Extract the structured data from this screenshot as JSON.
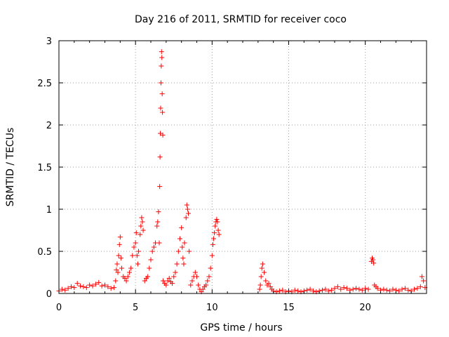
{
  "chart_data": {
    "type": "scatter",
    "title": "Day 216 of 2011, SRMTID for receiver coco",
    "xlabel": "GPS time / hours",
    "ylabel": "SRMTID / TECUs",
    "xlim": [
      0,
      24
    ],
    "ylim": [
      0,
      3
    ],
    "x_ticks": [
      0,
      5,
      10,
      15,
      20
    ],
    "x_tick_labels": [
      "0",
      "5",
      "10",
      "15",
      "20"
    ],
    "y_ticks": [
      0,
      0.5,
      1,
      1.5,
      2,
      2.5,
      3
    ],
    "y_tick_labels": [
      "0",
      "0.5",
      "1",
      "1.5",
      "2",
      "2.5",
      "3"
    ],
    "grid": true,
    "legend": "none",
    "marker": "plus",
    "color": "#ff0000",
    "series": [
      {
        "x": [
          0.0,
          0.2,
          0.4,
          0.6,
          0.8,
          1.0,
          1.2,
          1.4,
          1.6,
          1.8,
          2.0,
          2.2,
          2.4,
          2.6,
          2.8,
          3.0,
          3.2,
          3.4,
          3.6,
          3.7,
          3.75,
          3.8,
          3.85,
          3.9,
          3.95,
          4.0,
          4.05,
          4.1,
          4.2,
          4.3,
          4.4,
          4.5,
          4.6,
          4.7,
          4.8,
          4.9,
          5.0,
          5.05,
          5.1,
          5.15,
          5.2,
          5.3,
          5.35,
          5.4,
          5.45,
          5.5,
          5.6,
          5.7,
          5.8,
          5.9,
          6.0,
          6.1,
          6.2,
          6.3,
          6.4,
          6.45,
          6.5,
          6.55,
          6.58,
          6.6,
          6.62,
          6.64,
          6.66,
          6.68,
          6.7,
          6.72,
          6.74,
          6.76,
          6.78,
          6.8,
          6.9,
          7.0,
          7.1,
          7.2,
          7.3,
          7.4,
          7.5,
          7.6,
          7.7,
          7.8,
          7.9,
          8.0,
          8.05,
          8.1,
          8.15,
          8.2,
          8.3,
          8.35,
          8.4,
          8.45,
          8.5,
          8.6,
          8.7,
          8.8,
          8.9,
          9.0,
          9.1,
          9.2,
          9.3,
          9.4,
          9.5,
          9.6,
          9.7,
          9.8,
          9.9,
          10.0,
          10.05,
          10.1,
          10.15,
          10.2,
          10.25,
          10.3,
          10.35,
          10.4,
          10.45,
          13.1,
          13.15,
          13.2,
          13.25,
          13.3,
          13.4,
          13.5,
          13.6,
          13.7,
          13.8,
          13.9,
          14.0,
          14.2,
          14.4,
          14.6,
          14.8,
          15.0,
          15.2,
          15.4,
          15.6,
          15.8,
          16.0,
          16.2,
          16.4,
          16.6,
          16.8,
          17.0,
          17.2,
          17.4,
          17.6,
          17.8,
          18.0,
          18.2,
          18.4,
          18.6,
          18.8,
          19.0,
          19.2,
          19.4,
          19.6,
          19.8,
          20.0,
          20.2,
          20.4,
          20.45,
          20.5,
          20.55,
          20.6,
          20.7,
          20.8,
          21.0,
          21.2,
          21.4,
          21.6,
          21.8,
          22.0,
          22.2,
          22.4,
          22.6,
          22.8,
          23.0,
          23.2,
          23.4,
          23.6,
          23.7,
          23.8,
          23.9
        ],
        "y": [
          0.03,
          0.05,
          0.04,
          0.06,
          0.08,
          0.07,
          0.12,
          0.09,
          0.08,
          0.07,
          0.1,
          0.09,
          0.11,
          0.13,
          0.09,
          0.1,
          0.08,
          0.06,
          0.07,
          0.15,
          0.28,
          0.35,
          0.25,
          0.45,
          0.58,
          0.67,
          0.42,
          0.3,
          0.2,
          0.18,
          0.15,
          0.2,
          0.25,
          0.3,
          0.45,
          0.55,
          0.6,
          0.72,
          0.45,
          0.35,
          0.5,
          0.7,
          0.8,
          0.9,
          0.85,
          0.75,
          0.15,
          0.18,
          0.2,
          0.3,
          0.4,
          0.5,
          0.55,
          0.6,
          0.8,
          0.85,
          0.97,
          0.6,
          1.27,
          1.62,
          1.9,
          2.2,
          2.5,
          2.7,
          2.87,
          2.8,
          2.37,
          2.15,
          1.88,
          0.15,
          0.12,
          0.1,
          0.15,
          0.18,
          0.14,
          0.12,
          0.2,
          0.25,
          0.35,
          0.5,
          0.65,
          0.78,
          0.55,
          0.42,
          0.35,
          0.6,
          0.9,
          1.05,
          1.0,
          0.95,
          0.5,
          0.1,
          0.15,
          0.2,
          0.25,
          0.2,
          0.1,
          0.05,
          0.02,
          0.05,
          0.08,
          0.1,
          0.15,
          0.2,
          0.3,
          0.45,
          0.58,
          0.65,
          0.72,
          0.8,
          0.85,
          0.88,
          0.85,
          0.75,
          0.7,
          0.05,
          0.1,
          0.2,
          0.3,
          0.35,
          0.25,
          0.15,
          0.1,
          0.12,
          0.08,
          0.05,
          0.03,
          0.02,
          0.03,
          0.04,
          0.02,
          0.03,
          0.02,
          0.04,
          0.03,
          0.02,
          0.03,
          0.04,
          0.05,
          0.03,
          0.02,
          0.03,
          0.04,
          0.05,
          0.03,
          0.04,
          0.06,
          0.08,
          0.05,
          0.07,
          0.06,
          0.04,
          0.05,
          0.06,
          0.05,
          0.04,
          0.06,
          0.05,
          0.38,
          0.42,
          0.4,
          0.36,
          0.1,
          0.08,
          0.06,
          0.04,
          0.05,
          0.04,
          0.03,
          0.05,
          0.04,
          0.03,
          0.05,
          0.06,
          0.04,
          0.03,
          0.05,
          0.06,
          0.08,
          0.2,
          0.15,
          0.07
        ]
      }
    ]
  }
}
